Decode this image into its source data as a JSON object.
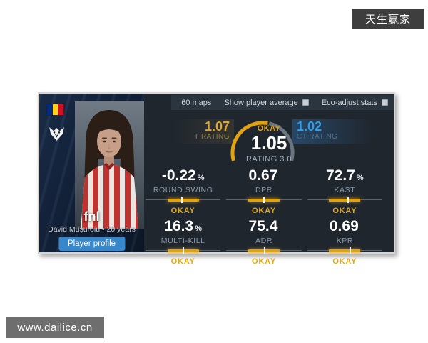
{
  "watermarks": {
    "top_right": "天生赢家",
    "bottom_left": "www.dailice.cn"
  },
  "toolbar": {
    "maps_label": "60 maps",
    "show_average_label": "Show player average",
    "eco_adjust_label": "Eco-adjust stats"
  },
  "player": {
    "name": "fnl",
    "full_name_age": "David Mușuroiu • 20 years",
    "profile_button": "Player profile",
    "country": "Romania",
    "team_logo": "wolf-head-logo"
  },
  "rating": {
    "overall": "1.05",
    "overall_grade": "OKAY",
    "scale_label": "RATING 3.0",
    "t_rating": "1.07",
    "t_label": "T RATING",
    "ct_rating": "1.02",
    "ct_label": "CT RATING"
  },
  "stats": [
    {
      "value": "-0.22",
      "suffix": "%",
      "label": "ROUND SWING",
      "grade": "OKAY",
      "tick": 0.45
    },
    {
      "value": "0.67",
      "suffix": "",
      "label": "DPR",
      "grade": "OKAY",
      "tick": 0.5
    },
    {
      "value": "72.7",
      "suffix": "%",
      "label": "KAST",
      "grade": "OKAY",
      "tick": 0.62
    },
    {
      "value": "16.3",
      "suffix": "%",
      "label": "MULTI-KILL",
      "grade": "OKAY",
      "tick": 0.5
    },
    {
      "value": "75.4",
      "suffix": "",
      "label": "ADR",
      "grade": "OKAY",
      "tick": 0.52
    },
    {
      "value": "0.69",
      "suffix": "",
      "label": "KPR",
      "grade": "OKAY",
      "tick": 0.68
    }
  ],
  "colors": {
    "accent_yellow": "#e2a10f",
    "accent_blue": "#2f9de8",
    "button_blue": "#3787cb",
    "card_bg": "#20262e",
    "flag": [
      "#002b7f",
      "#fcd116",
      "#ce1126"
    ]
  }
}
